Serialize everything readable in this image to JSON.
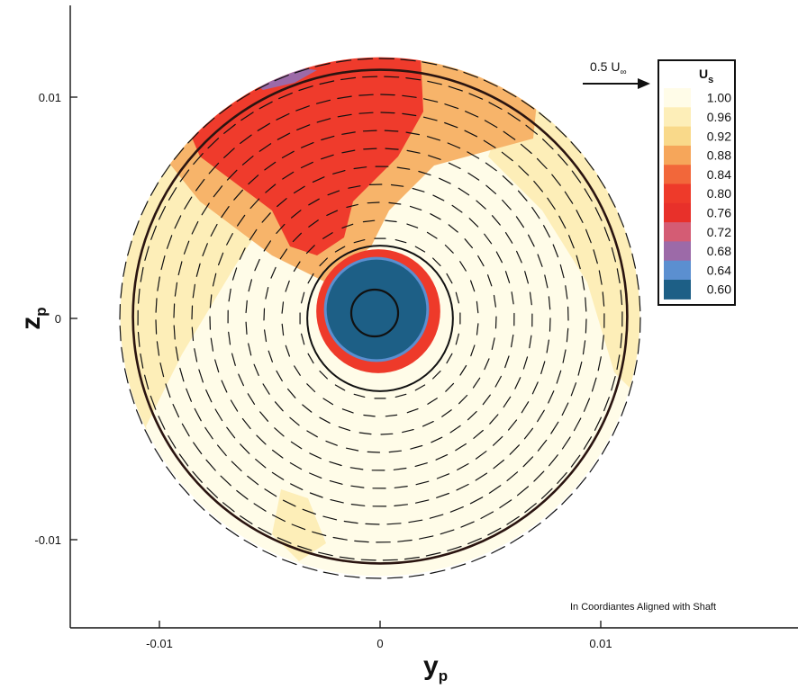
{
  "chart_data": {
    "type": "contour",
    "xlabel_main": "y",
    "xlabel_sub": "p",
    "ylabel_main": "z",
    "ylabel_sub": "p",
    "xlim": [
      -0.014,
      0.019
    ],
    "ylim": [
      -0.014,
      0.014
    ],
    "x_ticks": [
      {
        "value": -0.01,
        "label": "-0.01"
      },
      {
        "value": 0,
        "label": "0"
      },
      {
        "value": 0.01,
        "label": "0.01"
      }
    ],
    "y_ticks": [
      {
        "value": 0.01,
        "label": "0.01"
      },
      {
        "value": 0,
        "label": "0"
      },
      {
        "value": -0.01,
        "label": "-0.01"
      }
    ],
    "outer_radius": 0.0112,
    "hub_radius": 0.0033,
    "colorbar": {
      "title_main": "U",
      "title_sub": "s",
      "levels": [
        {
          "value": "1.00",
          "color": "#fffce8"
        },
        {
          "value": "0.96",
          "color": "#fdeeb8"
        },
        {
          "value": "0.92",
          "color": "#f9d98a"
        },
        {
          "value": "0.88",
          "color": "#f6a65a"
        },
        {
          "value": "0.84",
          "color": "#f2673a"
        },
        {
          "value": "0.80",
          "color": "#ee3a2a"
        },
        {
          "value": "0.76",
          "color": "#e8302a"
        },
        {
          "value": "0.72",
          "color": "#d45c74"
        },
        {
          "value": "0.68",
          "color": "#9c6aa8"
        },
        {
          "value": "0.64",
          "color": "#5b8fd0"
        },
        {
          "value": "0.60",
          "color": "#1d5f86"
        }
      ]
    },
    "reference_vector": {
      "main": "0.5 U",
      "sub": "∞"
    },
    "annotation": "In Coordiantes Aligned with Shaft"
  }
}
